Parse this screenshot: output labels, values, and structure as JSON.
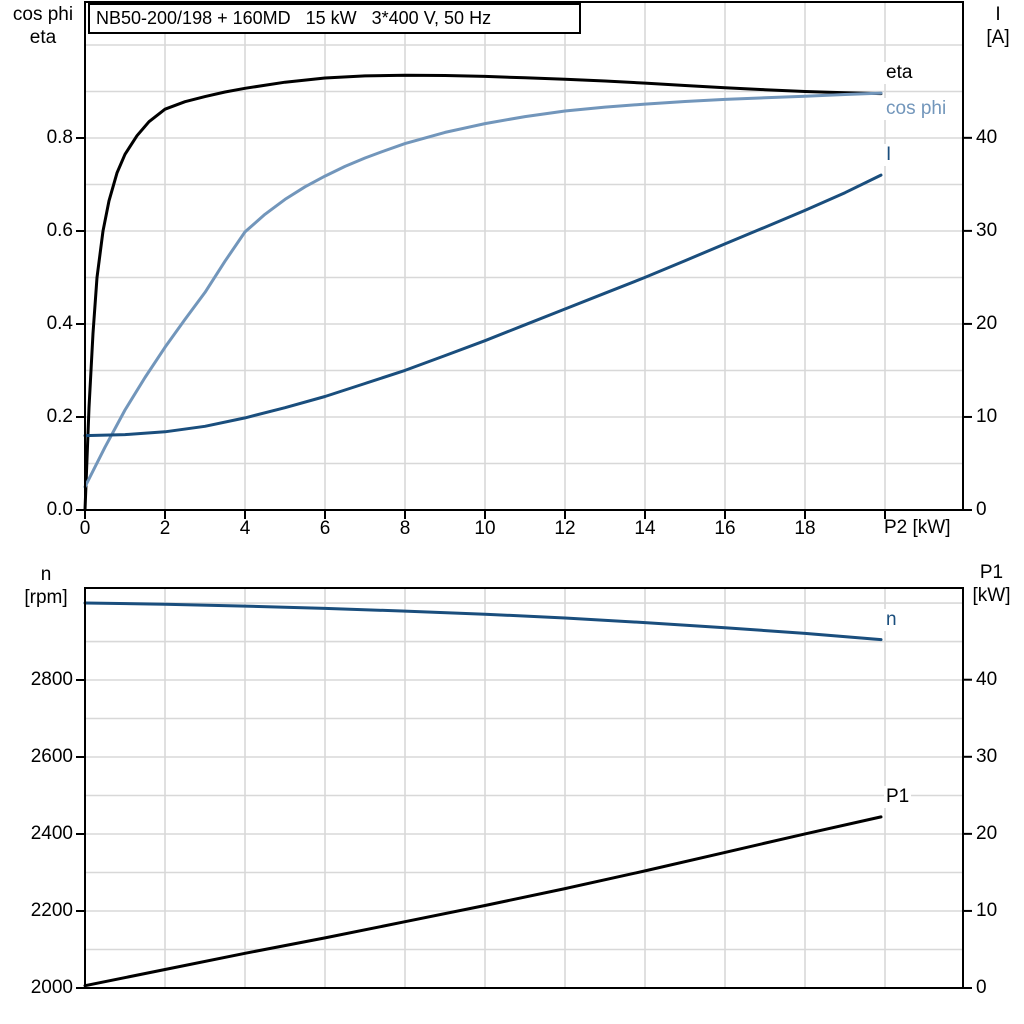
{
  "colors": {
    "black": "#000000",
    "light_blue": "#7296bb",
    "dark_blue": "#1a4e7d",
    "grid": "#d8d8d8",
    "axis": "#000000",
    "background": "#ffffff"
  },
  "chart_data": [
    {
      "type": "line",
      "title": "NB50-200/198 + 160MD   15 kW   3*400 V, 50 Hz",
      "x_axis_label": "P2 [kW]",
      "xlim": [
        0,
        21.95
      ],
      "x_ticks": [
        {
          "v": 0,
          "label": "0"
        },
        {
          "v": 2,
          "label": "2"
        },
        {
          "v": 4,
          "label": "4"
        },
        {
          "v": 6,
          "label": "6"
        },
        {
          "v": 8,
          "label": "8"
        },
        {
          "v": 10,
          "label": "10"
        },
        {
          "v": 12,
          "label": "12"
        },
        {
          "v": 14,
          "label": "14"
        },
        {
          "v": 16,
          "label": "16"
        },
        {
          "v": 18,
          "label": "18"
        },
        {
          "v": 20,
          "label": ""
        }
      ],
      "x_gridlines": [
        2,
        4,
        6,
        8,
        10,
        12,
        14,
        16,
        18,
        20
      ],
      "grid": true,
      "legend_position": "inside-right",
      "left_axis": {
        "title_lines": [
          "cos phi",
          "eta"
        ],
        "min": 0,
        "max": 1.0925,
        "minor_step": 0.1,
        "ticks": [
          {
            "v": 0,
            "label": "0.0"
          },
          {
            "v": 0.2,
            "label": "0.2"
          },
          {
            "v": 0.4,
            "label": "0.4"
          },
          {
            "v": 0.6,
            "label": "0.6"
          },
          {
            "v": 0.8,
            "label": "0.8"
          }
        ]
      },
      "right_axis": {
        "title_lines": [
          "I",
          "[A]"
        ],
        "min": 0,
        "max": 54.6,
        "minor_step": 5,
        "ticks": [
          {
            "v": 0,
            "label": "0"
          },
          {
            "v": 10,
            "label": "10"
          },
          {
            "v": 20,
            "label": "20"
          },
          {
            "v": 30,
            "label": "30"
          },
          {
            "v": 40,
            "label": "40"
          }
        ]
      },
      "series": [
        {
          "name": "eta",
          "label": "eta",
          "axis": "left",
          "color": "black",
          "width": 3,
          "points": [
            [
              0,
              0
            ],
            [
              0.1,
              0.22
            ],
            [
              0.2,
              0.38
            ],
            [
              0.3,
              0.5
            ],
            [
              0.45,
              0.6
            ],
            [
              0.6,
              0.665
            ],
            [
              0.8,
              0.725
            ],
            [
              1.0,
              0.765
            ],
            [
              1.3,
              0.805
            ],
            [
              1.6,
              0.835
            ],
            [
              2.0,
              0.862
            ],
            [
              2.5,
              0.878
            ],
            [
              3,
              0.889
            ],
            [
              3.5,
              0.899
            ],
            [
              4,
              0.907
            ],
            [
              5,
              0.92
            ],
            [
              6,
              0.929
            ],
            [
              7,
              0.9335
            ],
            [
              8,
              0.935
            ],
            [
              9,
              0.9345
            ],
            [
              10,
              0.9325
            ],
            [
              11,
              0.9295
            ],
            [
              12,
              0.9265
            ],
            [
              13,
              0.9225
            ],
            [
              14,
              0.918
            ],
            [
              15,
              0.913
            ],
            [
              16,
              0.908
            ],
            [
              17,
              0.904
            ],
            [
              18,
              0.9
            ],
            [
              19,
              0.8975
            ],
            [
              19.9,
              0.8955
            ]
          ]
        },
        {
          "name": "cos phi",
          "label": "cos phi",
          "axis": "left",
          "color": "light_blue",
          "width": 3,
          "points": [
            [
              0,
              0.05
            ],
            [
              0.5,
              0.135
            ],
            [
              1,
              0.215
            ],
            [
              1.5,
              0.285
            ],
            [
              2,
              0.35
            ],
            [
              2.5,
              0.41
            ],
            [
              3,
              0.468
            ],
            [
              3.5,
              0.535
            ],
            [
              4,
              0.598
            ],
            [
              4.5,
              0.636
            ],
            [
              5,
              0.668
            ],
            [
              5.5,
              0.695
            ],
            [
              6,
              0.718
            ],
            [
              6.5,
              0.739
            ],
            [
              7,
              0.757
            ],
            [
              7.5,
              0.773
            ],
            [
              8,
              0.788
            ],
            [
              9,
              0.812
            ],
            [
              10,
              0.831
            ],
            [
              11,
              0.846
            ],
            [
              12,
              0.858
            ],
            [
              13,
              0.8665
            ],
            [
              14,
              0.873
            ],
            [
              15,
              0.8785
            ],
            [
              16,
              0.883
            ],
            [
              17,
              0.8865
            ],
            [
              18,
              0.89
            ],
            [
              19,
              0.8935
            ],
            [
              19.9,
              0.8965
            ]
          ]
        },
        {
          "name": "I",
          "label": "I",
          "axis": "right",
          "color": "dark_blue",
          "width": 3,
          "points": [
            [
              0,
              8.0
            ],
            [
              1,
              8.1
            ],
            [
              2,
              8.4
            ],
            [
              3,
              9.0
            ],
            [
              4,
              9.9
            ],
            [
              5,
              11.0
            ],
            [
              6,
              12.2
            ],
            [
              7,
              13.6
            ],
            [
              8,
              15.0
            ],
            [
              9,
              16.6
            ],
            [
              10,
              18.2
            ],
            [
              11,
              19.9
            ],
            [
              12,
              21.6
            ],
            [
              13,
              23.3
            ],
            [
              14,
              25.0
            ],
            [
              15,
              26.8
            ],
            [
              16,
              28.6
            ],
            [
              17,
              30.4
            ],
            [
              18,
              32.2
            ],
            [
              19,
              34.1
            ],
            [
              19.9,
              36.0
            ]
          ]
        }
      ]
    },
    {
      "type": "line",
      "title": "",
      "x_axis_label": "",
      "xlim": [
        0,
        21.95
      ],
      "x_ticks": [],
      "x_gridlines": [
        2,
        4,
        6,
        8,
        10,
        12,
        14,
        16,
        18,
        20
      ],
      "grid": true,
      "legend_position": "inside-right",
      "left_axis": {
        "title_lines": [
          "n",
          "[rpm]"
        ],
        "min": 2000,
        "max": 3039,
        "minor_step": 100,
        "ticks": [
          {
            "v": 2000,
            "label": "2000"
          },
          {
            "v": 2200,
            "label": "2200"
          },
          {
            "v": 2400,
            "label": "2400"
          },
          {
            "v": 2600,
            "label": "2600"
          },
          {
            "v": 2800,
            "label": "2800"
          }
        ]
      },
      "right_axis": {
        "title_lines": [
          "P1",
          "[kW]"
        ],
        "min": 0,
        "max": 51.9,
        "minor_step": 5,
        "ticks": [
          {
            "v": 0,
            "label": "0"
          },
          {
            "v": 10,
            "label": "10"
          },
          {
            "v": 20,
            "label": "20"
          },
          {
            "v": 30,
            "label": "30"
          },
          {
            "v": 40,
            "label": "40"
          }
        ]
      },
      "series": [
        {
          "name": "n",
          "label": "n",
          "axis": "left",
          "color": "dark_blue",
          "width": 3,
          "points": [
            [
              0,
              3000
            ],
            [
              2,
              2997
            ],
            [
              4,
              2992
            ],
            [
              6,
              2986
            ],
            [
              8,
              2979
            ],
            [
              10,
              2971
            ],
            [
              12,
              2961
            ],
            [
              14,
              2949
            ],
            [
              16,
              2936
            ],
            [
              18,
              2921
            ],
            [
              19.9,
              2905
            ]
          ]
        },
        {
          "name": "P1",
          "label": "P1",
          "axis": "left_alt",
          "color": "black",
          "width": 3,
          "points": [
            [
              0,
              0.3
            ],
            [
              2,
              2.4
            ],
            [
              4,
              4.5
            ],
            [
              6,
              6.5
            ],
            [
              8,
              8.6
            ],
            [
              10,
              10.7
            ],
            [
              12,
              12.9
            ],
            [
              14,
              15.2
            ],
            [
              16,
              17.6
            ],
            [
              18,
              20.0
            ],
            [
              19.9,
              22.2
            ]
          ]
        }
      ]
    }
  ]
}
